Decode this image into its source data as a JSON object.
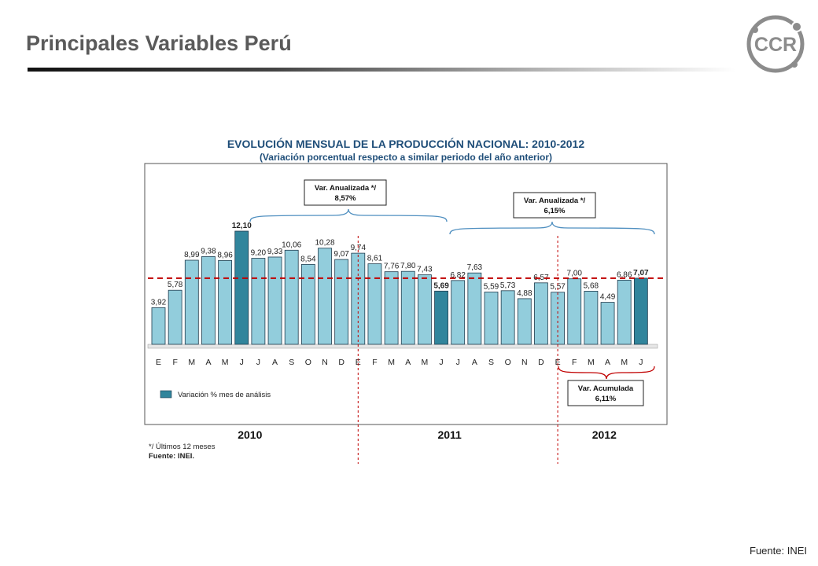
{
  "header": {
    "title": "Principales Variables Perú",
    "logo_text": "CCR"
  },
  "footer": {
    "source": "Fuente: INEI"
  },
  "colors": {
    "bar": "#92cddc",
    "bar_highlight": "#31859c",
    "bar_stroke": "#1f3b4d",
    "reference_line": "#c00000",
    "brace_blue": "#4f8fc0",
    "brace_red": "#c00000",
    "title_blue": "#1f4e79"
  },
  "chart_data": {
    "type": "bar",
    "title": "EVOLUCIÓN MENSUAL DE LA PRODUCCIÓN NACIONAL: 2010-2012",
    "subtitle": "(Variación porcentual respecto a similar periodo del año anterior)",
    "categories": [
      "E",
      "F",
      "M",
      "A",
      "M",
      "J",
      "J",
      "A",
      "S",
      "O",
      "N",
      "D",
      "E",
      "F",
      "M",
      "A",
      "M",
      "J",
      "J",
      "A",
      "S",
      "O",
      "N",
      "D",
      "E",
      "F",
      "M",
      "A",
      "M",
      "J"
    ],
    "values": [
      3.92,
      5.78,
      8.99,
      9.38,
      8.96,
      12.1,
      9.2,
      9.33,
      10.06,
      8.54,
      10.28,
      9.07,
      9.74,
      8.61,
      7.76,
      7.8,
      7.43,
      5.69,
      6.82,
      7.63,
      5.59,
      5.73,
      4.88,
      6.57,
      5.57,
      7.0,
      5.68,
      4.49,
      6.86,
      7.07
    ],
    "value_labels": [
      "3,92",
      "5,78",
      "8,99",
      "9,38",
      "8,96",
      "12,10",
      "9,20",
      "9,33",
      "10,06",
      "8,54",
      "10,28",
      "9,07",
      "9,74",
      "8,61",
      "7,76",
      "7,80",
      "7,43",
      "5,69",
      "6,82",
      "7,63",
      "5,59",
      "5,73",
      "4,88",
      "6,57",
      "5,57",
      "7,00",
      "5,68",
      "4,49",
      "6,86",
      "7,07"
    ],
    "highlighted": [
      5,
      17,
      29
    ],
    "bold_labels": [
      5,
      17,
      29
    ],
    "ylim": [
      0,
      13
    ],
    "reference_value": 7.07,
    "years": [
      "2010",
      "2011",
      "2012"
    ],
    "legend": "Variación % mes de análisis",
    "annotations": [
      {
        "text": "Var. Anualizada */",
        "value": "8,57%"
      },
      {
        "text": "Var. Anualizada */",
        "value": "6,15%"
      },
      {
        "text": "Var. Acumulada",
        "value": "6,11%"
      }
    ],
    "notes": [
      "*/ Últimos 12 meses",
      "Fuente: INEI."
    ]
  }
}
